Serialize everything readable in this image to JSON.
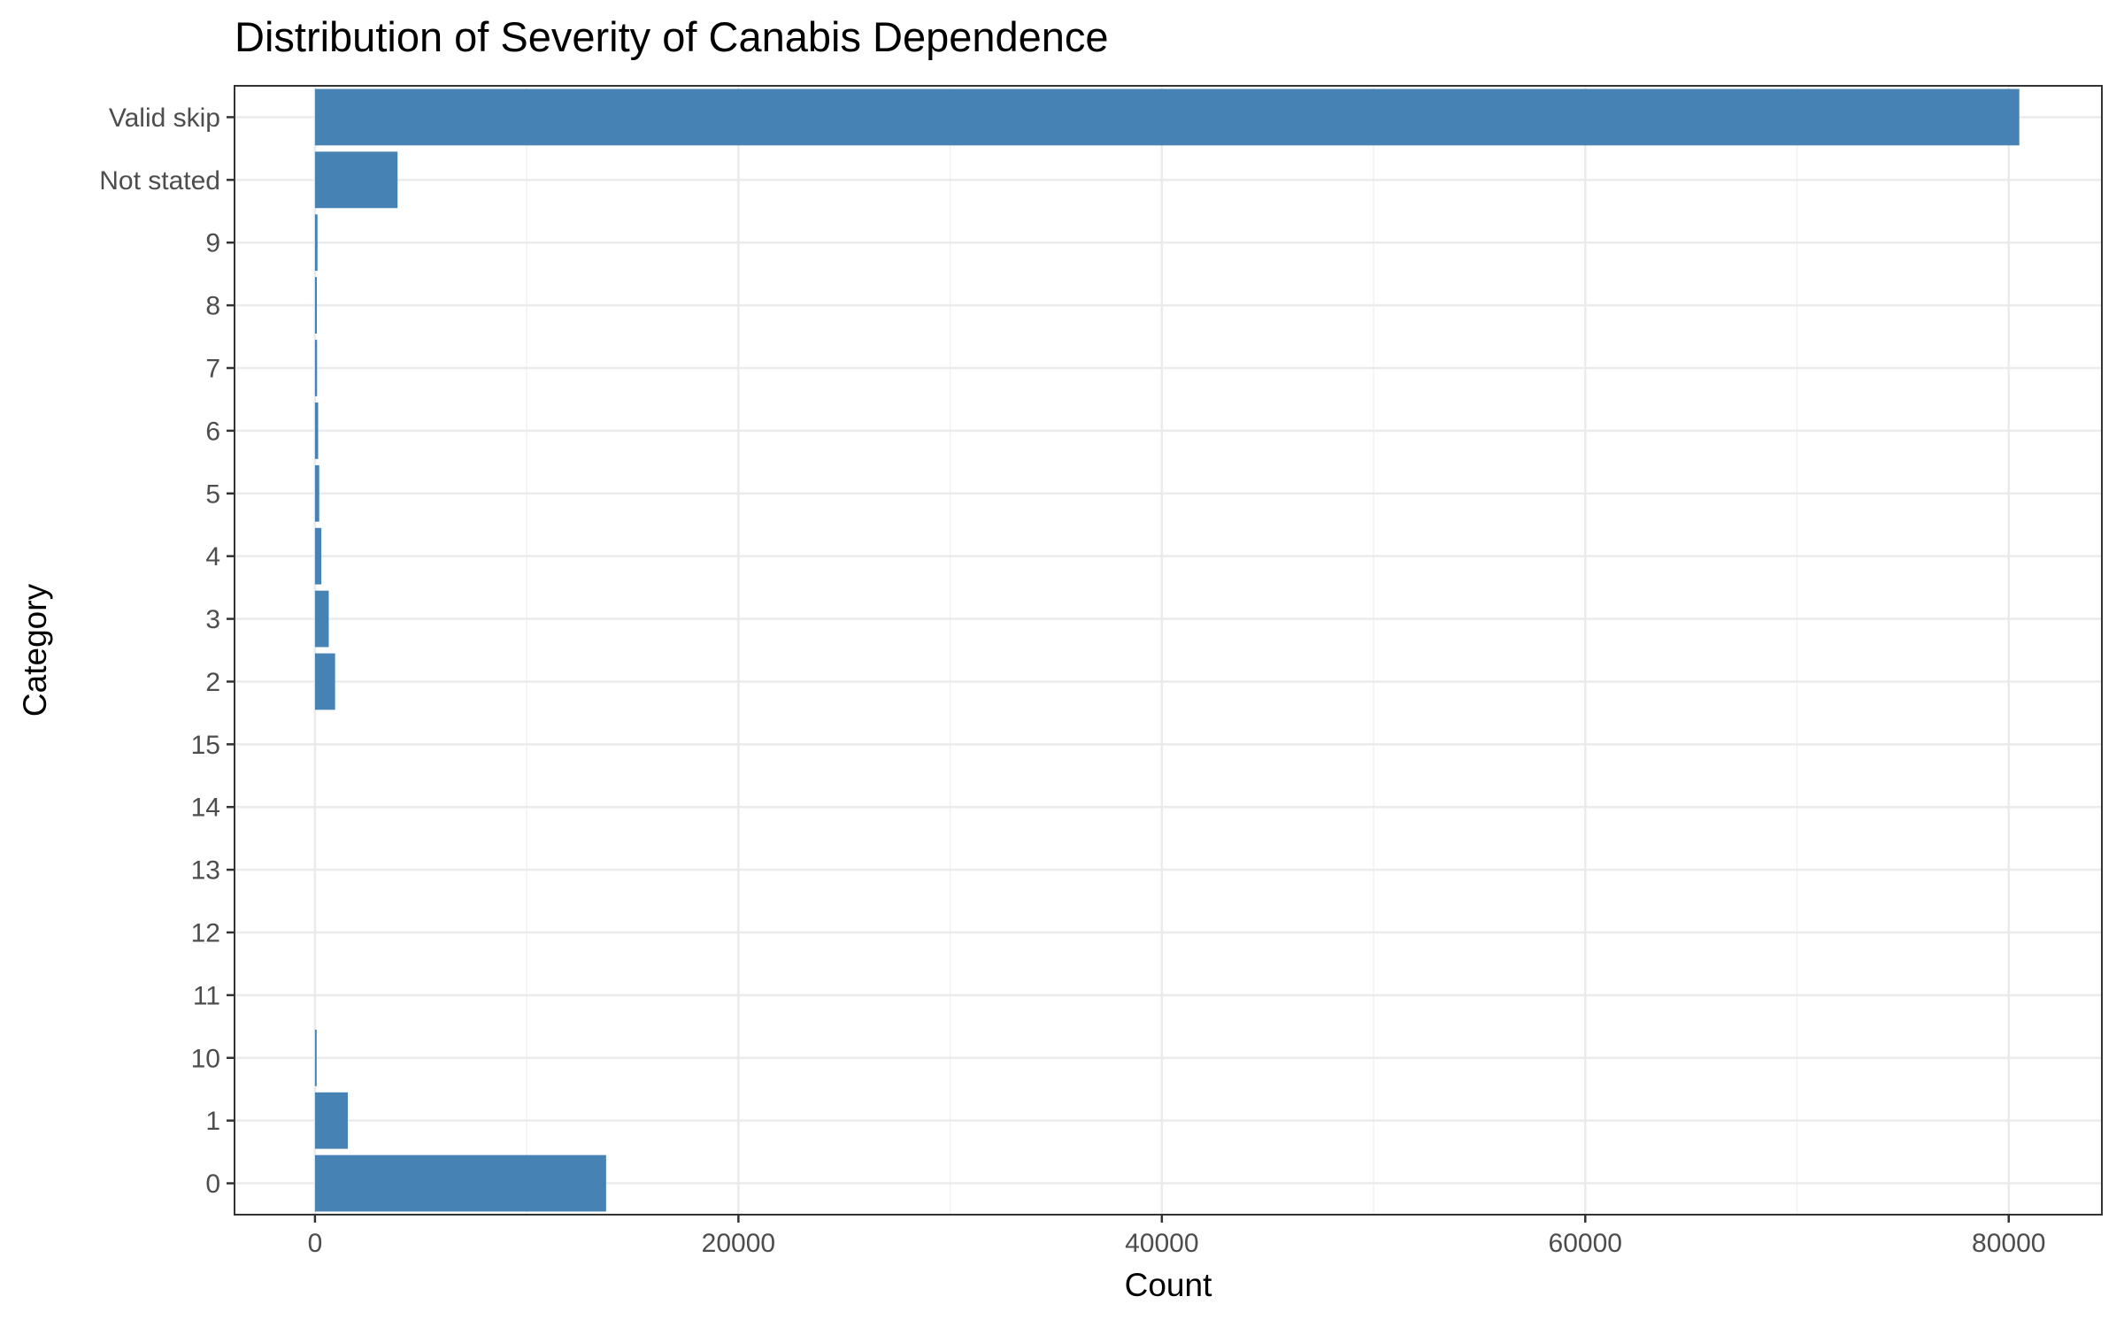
{
  "chart_data": {
    "type": "bar",
    "orientation": "horizontal",
    "title": "Distribution of Severity of Canabis Dependence",
    "xlabel": "Count",
    "ylabel": "Category",
    "categories": [
      "0",
      "1",
      "10",
      "11",
      "12",
      "13",
      "14",
      "15",
      "2",
      "3",
      "4",
      "5",
      "6",
      "7",
      "8",
      "9",
      "Not stated",
      "Valid skip"
    ],
    "values": [
      13750,
      1550,
      80,
      0,
      0,
      0,
      0,
      0,
      950,
      650,
      300,
      200,
      150,
      100,
      90,
      120,
      3900,
      80500
    ],
    "xlim": [
      -3800,
      84400
    ],
    "xticks": [
      0,
      20000,
      40000,
      60000,
      80000
    ],
    "grid": true,
    "legend": "none",
    "colors": {
      "bar": "#4682b4",
      "grid_major": "#ebebeb",
      "grid_minor": "#f2f2f2",
      "panel_border": "#333333"
    }
  }
}
